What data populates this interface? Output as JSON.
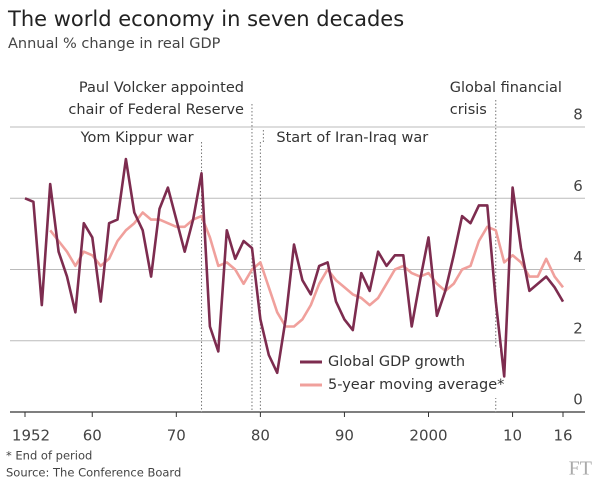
{
  "chart_data": {
    "type": "line",
    "title": "The world economy in seven decades",
    "subtitle": "Annual % change in real GDP",
    "x": [
      1952,
      1953,
      1954,
      1955,
      1956,
      1957,
      1958,
      1959,
      1960,
      1961,
      1962,
      1963,
      1964,
      1965,
      1966,
      1967,
      1968,
      1969,
      1970,
      1971,
      1972,
      1973,
      1974,
      1975,
      1976,
      1977,
      1978,
      1979,
      1980,
      1981,
      1982,
      1983,
      1984,
      1985,
      1986,
      1987,
      1988,
      1989,
      1990,
      1991,
      1992,
      1993,
      1994,
      1995,
      1996,
      1997,
      1998,
      1999,
      2000,
      2001,
      2002,
      2003,
      2004,
      2005,
      2006,
      2007,
      2008,
      2009,
      2010,
      2011,
      2012,
      2013,
      2014,
      2015,
      2016
    ],
    "series": [
      {
        "name": "Global GDP growth",
        "color": "#7d2c4f",
        "values": [
          6.0,
          5.9,
          3.0,
          6.4,
          4.5,
          3.8,
          2.8,
          5.3,
          4.9,
          3.1,
          5.3,
          5.4,
          7.1,
          5.6,
          5.1,
          3.8,
          5.7,
          6.3,
          5.4,
          4.5,
          5.4,
          6.7,
          2.4,
          1.7,
          5.1,
          4.3,
          4.8,
          4.6,
          2.6,
          1.6,
          1.1,
          2.6,
          4.7,
          3.7,
          3.3,
          4.1,
          4.2,
          3.1,
          2.6,
          2.3,
          3.9,
          3.4,
          4.5,
          4.1,
          4.4,
          4.4,
          2.4,
          3.7,
          4.9,
          2.7,
          3.4,
          4.4,
          5.5,
          5.3,
          5.8,
          5.8,
          3.1,
          1.0,
          6.3,
          4.6,
          3.4,
          3.6,
          3.8,
          3.5,
          3.1
        ]
      },
      {
        "name": "5-year moving average*",
        "color": "#f0a09c",
        "values": [
          null,
          null,
          null,
          5.1,
          4.8,
          4.5,
          4.1,
          4.5,
          4.4,
          4.1,
          4.3,
          4.8,
          5.1,
          5.3,
          5.6,
          5.4,
          5.4,
          5.3,
          5.2,
          5.2,
          5.4,
          5.5,
          4.9,
          4.1,
          4.2,
          4.0,
          3.6,
          4.0,
          4.2,
          3.5,
          2.8,
          2.4,
          2.4,
          2.6,
          3.0,
          3.6,
          4.0,
          3.7,
          3.5,
          3.3,
          3.2,
          3.0,
          3.2,
          3.6,
          4.0,
          4.1,
          3.9,
          3.8,
          3.9,
          3.6,
          3.4,
          3.6,
          4.0,
          4.1,
          4.8,
          5.2,
          5.1,
          4.2,
          4.4,
          4.2,
          3.8,
          3.8,
          4.3,
          3.8,
          3.5
        ]
      }
    ],
    "xlim": [
      1952,
      2016
    ],
    "xticks": [
      {
        "value": 1952,
        "label": "1952"
      },
      {
        "value": 1960,
        "label": "60"
      },
      {
        "value": 1970,
        "label": "70"
      },
      {
        "value": 1980,
        "label": "80"
      },
      {
        "value": 1990,
        "label": "90"
      },
      {
        "value": 2000,
        "label": "2000"
      },
      {
        "value": 2010,
        "label": "10"
      },
      {
        "value": 2016,
        "label": "16"
      }
    ],
    "ylim": [
      0,
      8
    ],
    "yticks": [
      0,
      2,
      4,
      6,
      8
    ],
    "grid": true,
    "annotations": [
      {
        "x": 1973,
        "lines": [
          "Yom Kippur war"
        ]
      },
      {
        "x": 1979,
        "lines": [
          "Paul Volcker appointed",
          "chair of Federal Reserve"
        ]
      },
      {
        "x": 1980,
        "lines": [
          "Start of Iran-Iraq war"
        ]
      },
      {
        "x": 2008,
        "lines": [
          "Global financial",
          "crisis"
        ]
      }
    ],
    "footnote": "* End of period",
    "source": "Source: The Conference Board",
    "logo": "FT"
  }
}
